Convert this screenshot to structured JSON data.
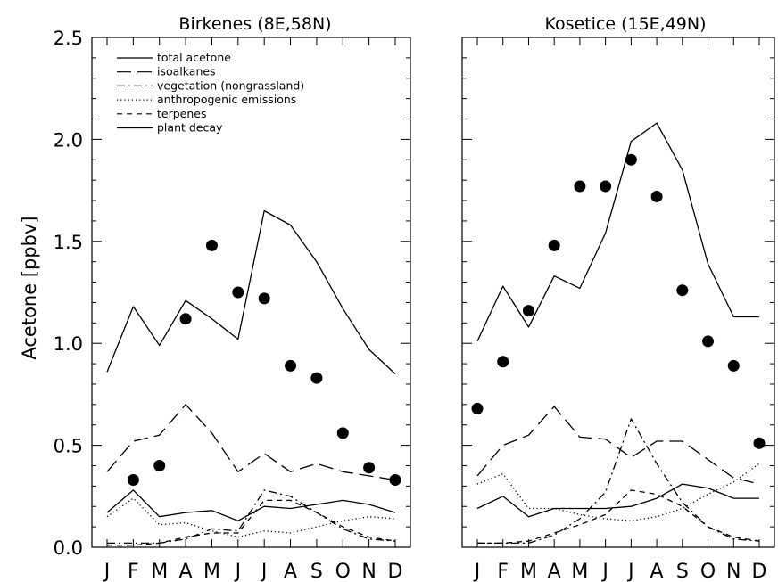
{
  "chart_data": {
    "type": "line",
    "ylabel": "Acetone [ppbv]",
    "ylim": [
      0,
      2.5
    ],
    "yticks": [
      0.0,
      0.5,
      1.0,
      1.5,
      2.0,
      2.5
    ],
    "ytick_labels": [
      "0.0",
      "0.5",
      "1.0",
      "1.5",
      "2.0",
      "2.5"
    ],
    "categories": [
      "J",
      "F",
      "M",
      "A",
      "M",
      "J",
      "J",
      "A",
      "S",
      "O",
      "N",
      "D"
    ],
    "legend": {
      "placement": "top-left",
      "entries": [
        {
          "label": "total acetone",
          "style": "solid"
        },
        {
          "label": "isoalkanes",
          "style": "longdash"
        },
        {
          "label": "vegetation (nongrassland)",
          "style": "dashdot"
        },
        {
          "label": "anthropogenic emissions",
          "style": "dotted"
        },
        {
          "label": "terpenes",
          "style": "dashed"
        },
        {
          "label": "plant decay",
          "style": "solid"
        }
      ]
    },
    "panels": [
      {
        "title": "Birkenes (8E,58N)",
        "series": [
          {
            "name": "total acetone",
            "style": "solid",
            "values": [
              0.86,
              1.18,
              0.99,
              1.21,
              1.12,
              1.02,
              1.65,
              1.58,
              1.4,
              1.17,
              0.97,
              0.85
            ]
          },
          {
            "name": "isoalkanes",
            "style": "longdash",
            "values": [
              0.37,
              0.52,
              0.55,
              0.7,
              0.56,
              0.37,
              0.46,
              0.37,
              0.41,
              0.37,
              0.35,
              0.33
            ]
          },
          {
            "name": "vegetation (nongrassland)",
            "style": "dashdot",
            "values": [
              0.02,
              0.02,
              0.02,
              0.04,
              0.09,
              0.08,
              0.28,
              0.25,
              0.17,
              0.09,
              0.04,
              0.03
            ]
          },
          {
            "name": "anthropogenic emissions",
            "style": "dotted",
            "values": [
              0.15,
              0.24,
              0.11,
              0.12,
              0.08,
              0.05,
              0.08,
              0.07,
              0.1,
              0.13,
              0.15,
              0.14
            ]
          },
          {
            "name": "terpenes",
            "style": "dashed",
            "values": [
              0.01,
              0.01,
              0.02,
              0.05,
              0.07,
              0.07,
              0.23,
              0.23,
              0.17,
              0.1,
              0.05,
              0.03
            ]
          },
          {
            "name": "plant decay",
            "style": "solid",
            "values": [
              0.17,
              0.28,
              0.15,
              0.17,
              0.18,
              0.13,
              0.2,
              0.19,
              0.21,
              0.23,
              0.21,
              0.17
            ]
          }
        ],
        "observations": [
          null,
          0.33,
          0.4,
          1.12,
          1.48,
          1.25,
          1.22,
          0.89,
          0.83,
          0.56,
          0.39,
          0.33
        ]
      },
      {
        "title": "Kosetice (15E,49N)",
        "series": [
          {
            "name": "total acetone",
            "style": "solid",
            "values": [
              1.01,
              1.28,
              1.08,
              1.33,
              1.27,
              1.54,
              1.99,
              2.08,
              1.85,
              1.39,
              1.13,
              1.13
            ]
          },
          {
            "name": "isoalkanes",
            "style": "longdash",
            "values": [
              0.35,
              0.5,
              0.55,
              0.69,
              0.54,
              0.53,
              0.44,
              0.52,
              0.52,
              0.43,
              0.34,
              0.31
            ]
          },
          {
            "name": "vegetation (nongrassland)",
            "style": "dashdot",
            "values": [
              0.02,
              0.02,
              0.02,
              0.06,
              0.14,
              0.27,
              0.63,
              0.41,
              0.22,
              0.1,
              0.04,
              0.03
            ]
          },
          {
            "name": "anthropogenic emissions",
            "style": "dotted",
            "values": [
              0.31,
              0.36,
              0.19,
              0.19,
              0.16,
              0.14,
              0.13,
              0.15,
              0.19,
              0.26,
              0.32,
              0.41
            ]
          },
          {
            "name": "terpenes",
            "style": "dashed",
            "values": [
              0.02,
              0.02,
              0.03,
              0.07,
              0.11,
              0.16,
              0.28,
              0.26,
              0.2,
              0.1,
              0.05,
              0.03
            ]
          },
          {
            "name": "plant decay",
            "style": "solid",
            "values": [
              0.19,
              0.25,
              0.15,
              0.19,
              0.19,
              0.19,
              0.2,
              0.24,
              0.31,
              0.29,
              0.24,
              0.24
            ]
          }
        ],
        "observations": [
          0.68,
          0.91,
          1.16,
          1.48,
          1.77,
          1.77,
          1.9,
          1.72,
          1.26,
          1.01,
          0.89,
          0.51
        ]
      }
    ]
  }
}
